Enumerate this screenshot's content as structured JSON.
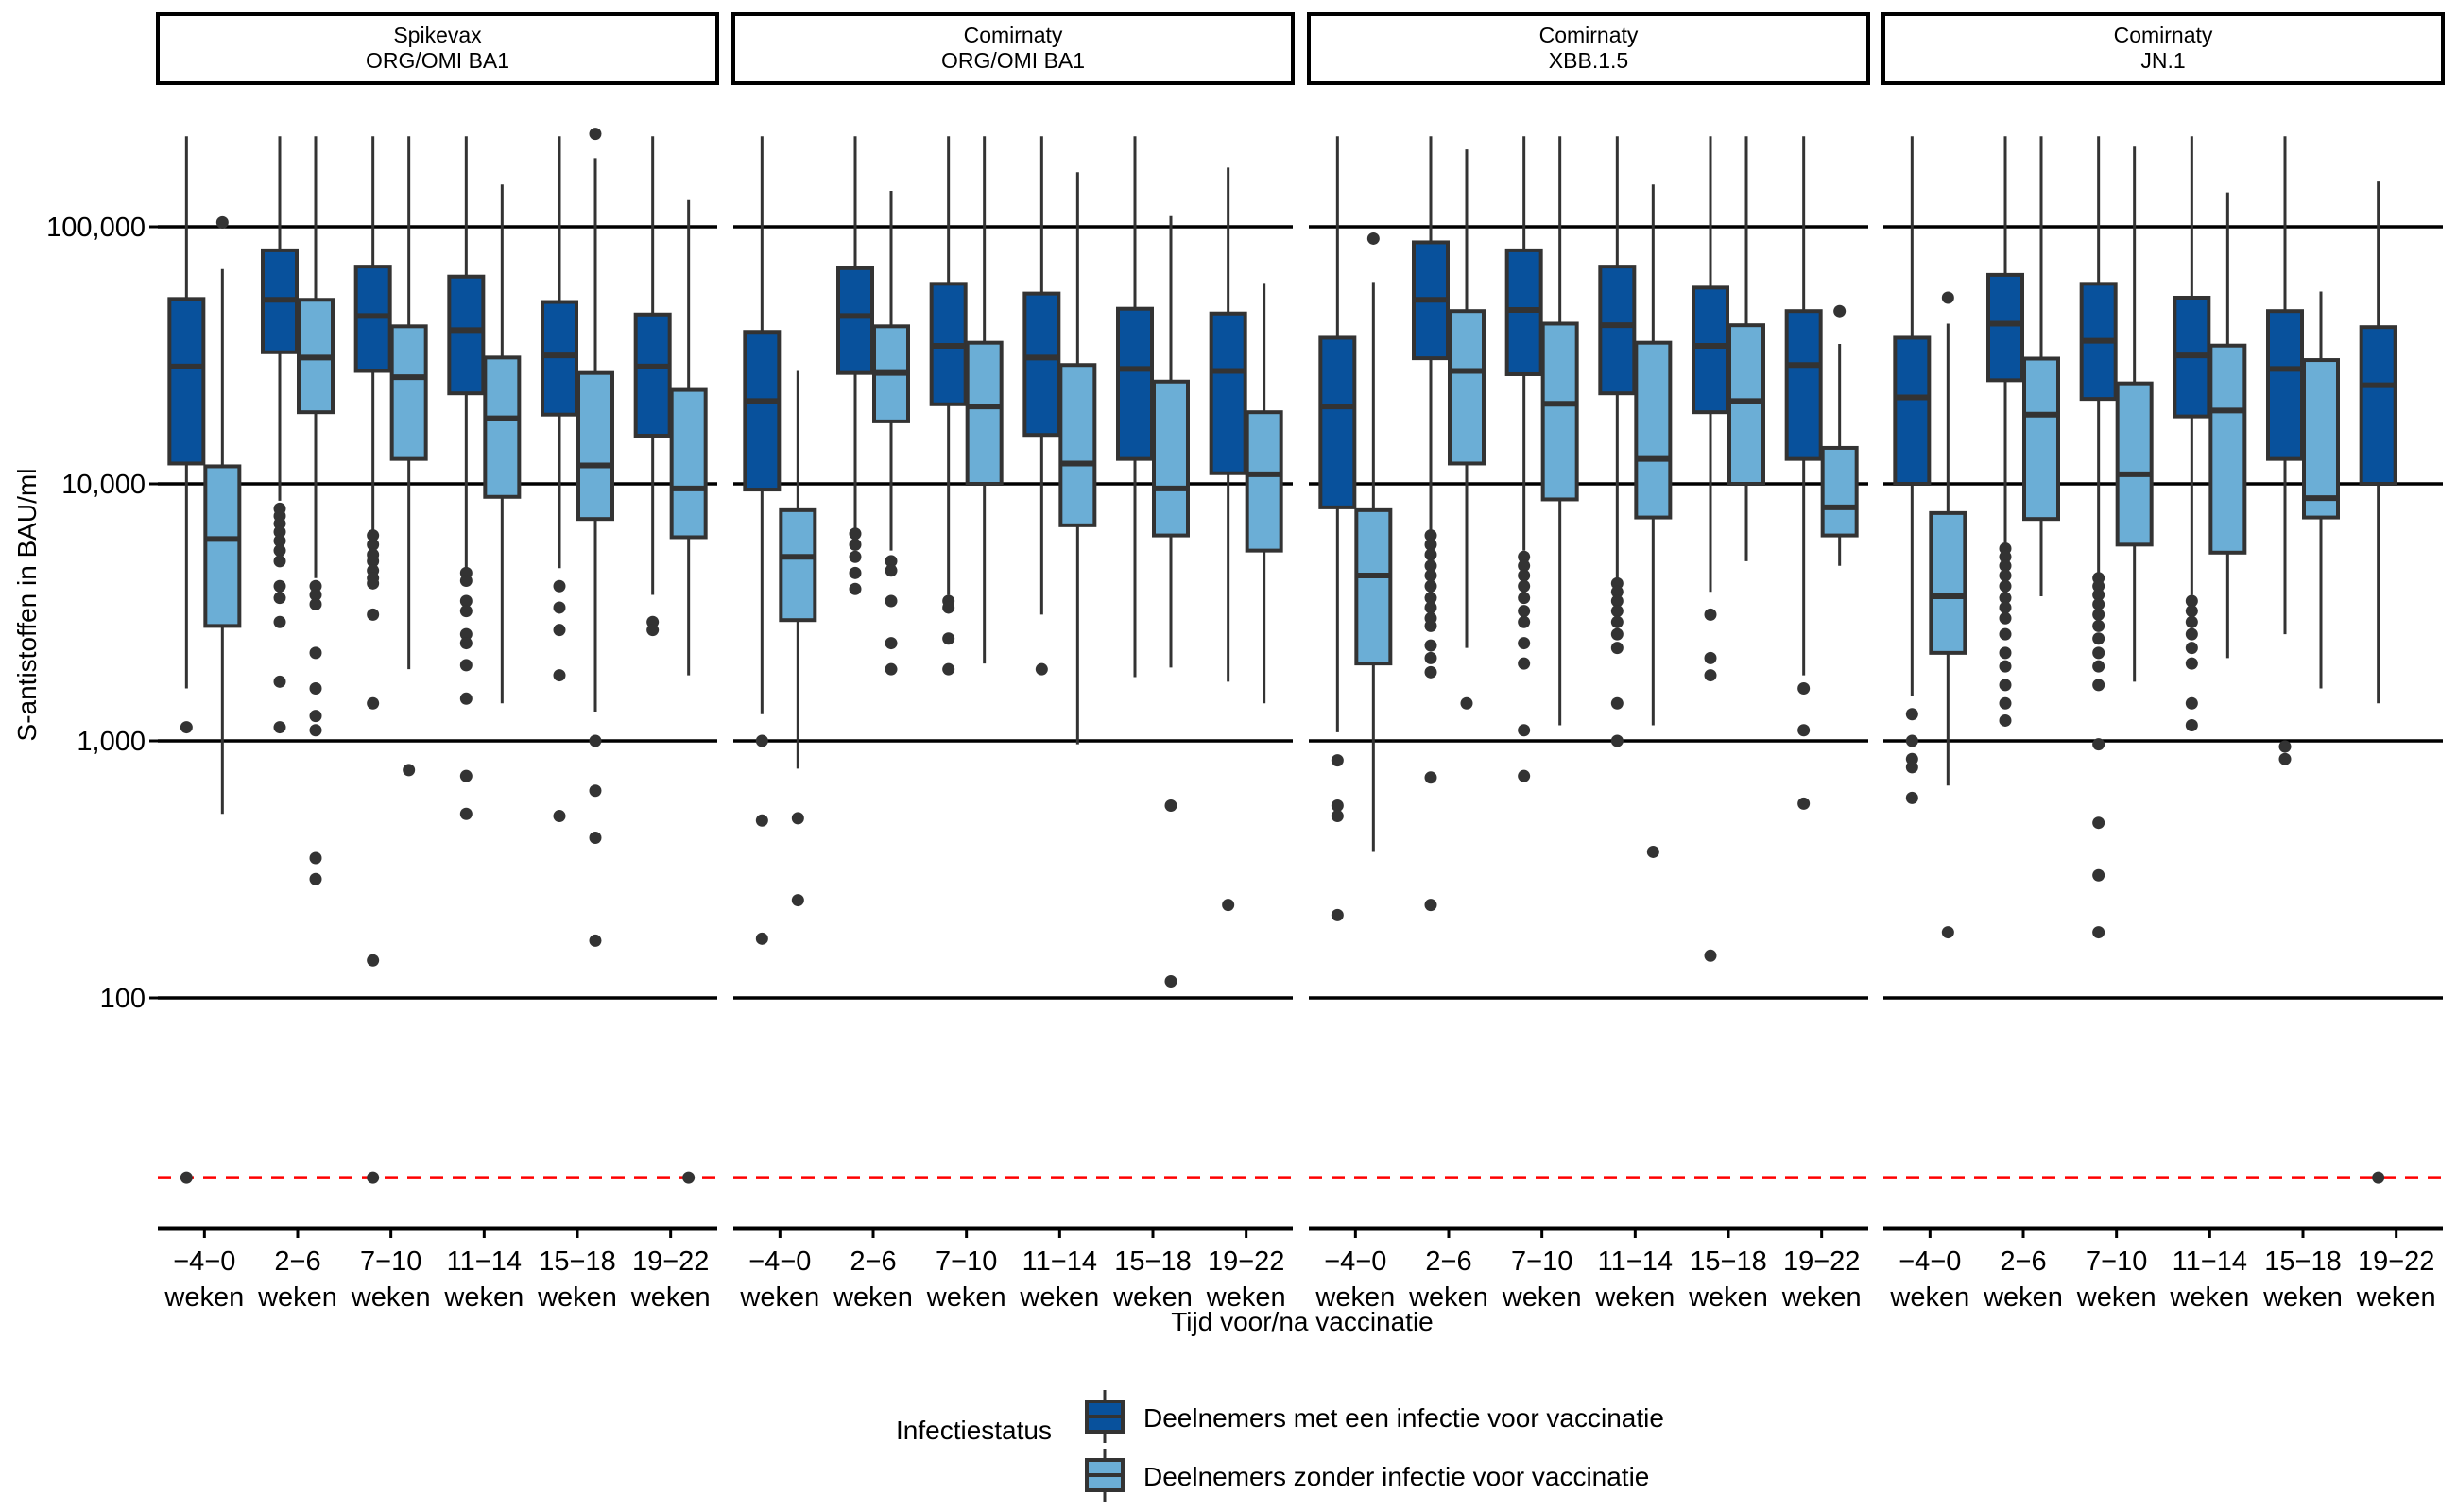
{
  "chart_data": {
    "type": "box",
    "title": "",
    "xlabel": "Tijd voor/na vaccinatie",
    "ylabel": "S-antistoffen in BAU/ml",
    "yscale": "log10",
    "ylim": [
      15,
      230000
    ],
    "yticks": [
      100,
      1000,
      10000,
      100000
    ],
    "ytick_labels": [
      "100",
      "1,000",
      "10,000",
      "100,000"
    ],
    "grid": "major-y",
    "reference_line": {
      "value": 20,
      "color": "#ff0000",
      "style": "dashed",
      "description": "detectiegrens"
    },
    "categories": [
      "−4−0\nweken",
      "2−6\nweken",
      "7−10\nweken",
      "11−14\nweken",
      "15−18\nweken",
      "19−22\nweken"
    ],
    "legend": {
      "title": "Infectiestatus",
      "position": "bottom",
      "entries": [
        {
          "name": "Deelnemers met een infectie voor vaccinatie",
          "color": "#08519c"
        },
        {
          "name": "Deelnemers zonder infectie voor vaccinatie",
          "color": "#6baed6"
        }
      ]
    },
    "panels": [
      {
        "strip": [
          "Spikevax",
          "ORG/OMI BA1"
        ],
        "series": [
          {
            "name": "Deelnemers met een infectie voor vaccinatie",
            "boxes": [
              {
                "low": 1600,
                "q1": 12000,
                "median": 28600,
                "q3": 52400,
                "high": 225000,
                "outliers": [
                  1130,
                  20
                ]
              },
              {
                "low": 8600,
                "q1": 32500,
                "median": 52000,
                "q3": 81000,
                "high": 225000,
                "outliers": [
                  8000,
                  7500,
                  7000,
                  6500,
                  6000,
                  5500,
                  5000,
                  4000,
                  3600,
                  2900,
                  1700,
                  1130
                ]
              },
              {
                "low": 6500,
                "q1": 27500,
                "median": 45000,
                "q3": 70000,
                "high": 225000,
                "outliers": [
                  6300,
                  5800,
                  5300,
                  5000,
                  4600,
                  4300,
                  4100,
                  3100,
                  1400,
                  140,
                  20
                ]
              },
              {
                "low": 4600,
                "q1": 22500,
                "median": 39600,
                "q3": 64000,
                "high": 225000,
                "outliers": [
                  4500,
                  4200,
                  3500,
                  3200,
                  2600,
                  2400,
                  1970,
                  1460,
                  730,
                  520
                ]
              },
              {
                "low": 4700,
                "q1": 18600,
                "median": 31600,
                "q3": 51000,
                "high": 225000,
                "outliers": [
                  4000,
                  3300,
                  2700,
                  1800,
                  510
                ]
              },
              {
                "low": 3700,
                "q1": 15400,
                "median": 28600,
                "q3": 45600,
                "high": 225000,
                "outliers": [
                  2900,
                  2700
                ]
              }
            ]
          },
          {
            "name": "Deelnemers zonder infectie voor vaccinatie",
            "boxes": [
              {
                "low": 520,
                "q1": 2800,
                "median": 6100,
                "q3": 11700,
                "high": 68500,
                "outliers": [
                  104000
                ]
              },
              {
                "low": 4300,
                "q1": 19000,
                "median": 31000,
                "q3": 52000,
                "high": 225000,
                "outliers": [
                  4000,
                  3700,
                  3400,
                  2200,
                  1600,
                  1250,
                  1100,
                  350,
                  290
                ]
              },
              {
                "low": 1900,
                "q1": 12500,
                "median": 26000,
                "q3": 41000,
                "high": 225000,
                "outliers": [
                  770
                ]
              },
              {
                "low": 1400,
                "q1": 8900,
                "median": 18000,
                "q3": 31000,
                "high": 146000,
                "outliers": []
              },
              {
                "low": 1300,
                "q1": 7300,
                "median": 11800,
                "q3": 27000,
                "high": 185000,
                "outliers": [
                  230000,
                  1000,
                  640,
                  420,
                  167
                ]
              },
              {
                "low": 1800,
                "q1": 6200,
                "median": 9600,
                "q3": 23200,
                "high": 127000,
                "outliers": [
                  20
                ]
              }
            ]
          }
        ]
      },
      {
        "strip": [
          "Comirnaty",
          "ORG/OMI BA1"
        ],
        "series": [
          {
            "name": "Deelnemers met een infectie voor vaccinatie",
            "boxes": [
              {
                "low": 1270,
                "q1": 9500,
                "median": 21000,
                "q3": 39000,
                "high": 225000,
                "outliers": [
                  1000,
                  490,
                  170
                ]
              },
              {
                "low": 6500,
                "q1": 27000,
                "median": 45000,
                "q3": 69000,
                "high": 225000,
                "outliers": [
                  6400,
                  5800,
                  5200,
                  4500,
                  3900
                ]
              },
              {
                "low": 3700,
                "q1": 20400,
                "median": 34400,
                "q3": 60000,
                "high": 225000,
                "outliers": [
                  3500,
                  3300,
                  2500,
                  1900
                ]
              },
              {
                "low": 3100,
                "q1": 15500,
                "median": 31000,
                "q3": 55000,
                "high": 225000,
                "outliers": [
                  1900
                ]
              },
              {
                "low": 1770,
                "q1": 12500,
                "median": 28000,
                "q3": 48000,
                "high": 225000,
                "outliers": []
              },
              {
                "low": 1700,
                "q1": 11000,
                "median": 27500,
                "q3": 46000,
                "high": 170000,
                "outliers": [
                  230
                ]
              }
            ]
          },
          {
            "name": "Deelnemers zonder infectie voor vaccinatie",
            "boxes": [
              {
                "low": 780,
                "q1": 2950,
                "median": 5200,
                "q3": 7900,
                "high": 27500,
                "outliers": [
                  500,
                  240
                ]
              },
              {
                "low": 5500,
                "q1": 17500,
                "median": 27000,
                "q3": 41000,
                "high": 138000,
                "outliers": [
                  5000,
                  4600,
                  3500,
                  2400,
                  1900
                ]
              },
              {
                "low": 2000,
                "q1": 10000,
                "median": 20000,
                "q3": 35400,
                "high": 225000,
                "outliers": []
              },
              {
                "low": 970,
                "q1": 6900,
                "median": 12000,
                "q3": 29000,
                "high": 163000,
                "outliers": []
              },
              {
                "low": 1930,
                "q1": 6300,
                "median": 9600,
                "q3": 25000,
                "high": 110000,
                "outliers": [
                  560,
                  116
                ]
              },
              {
                "low": 1400,
                "q1": 5500,
                "median": 10900,
                "q3": 19000,
                "high": 60000,
                "outliers": []
              }
            ]
          }
        ]
      },
      {
        "strip": [
          "Comirnaty",
          "XBB.1.5"
        ],
        "series": [
          {
            "name": "Deelnemers met een infectie voor vaccinatie",
            "boxes": [
              {
                "low": 1080,
                "q1": 8100,
                "median": 20000,
                "q3": 37000,
                "high": 225000,
                "outliers": [
                  840,
                  560,
                  510,
                  210
                ]
              },
              {
                "low": 6600,
                "q1": 30800,
                "median": 52000,
                "q3": 87000,
                "high": 225000,
                "outliers": [
                  6300,
                  5800,
                  5300,
                  4800,
                  4400,
                  4000,
                  3600,
                  3300,
                  3000,
                  2800,
                  2350,
                  2100,
                  1850,
                  720,
                  230
                ]
              },
              {
                "low": 5500,
                "q1": 26700,
                "median": 47500,
                "q3": 81000,
                "high": 225000,
                "outliers": [
                  5200,
                  4800,
                  4400,
                  4000,
                  3600,
                  3200,
                  2900,
                  2400,
                  2000,
                  1100,
                  730
                ]
              },
              {
                "low": 4300,
                "q1": 22500,
                "median": 41400,
                "q3": 70000,
                "high": 225000,
                "outliers": [
                  4100,
                  3800,
                  3500,
                  3200,
                  2900,
                  2600,
                  2300,
                  1400,
                  1000
                ]
              },
              {
                "low": 3800,
                "q1": 19000,
                "median": 34400,
                "q3": 58000,
                "high": 225000,
                "outliers": [
                  3100,
                  2100,
                  1800,
                  146
                ]
              },
              {
                "low": 1800,
                "q1": 12500,
                "median": 29000,
                "q3": 47000,
                "high": 225000,
                "outliers": [
                  1600,
                  1100,
                  570
                ]
              }
            ]
          },
          {
            "name": "Deelnemers zonder infectie voor vaccinatie",
            "boxes": [
              {
                "low": 370,
                "q1": 2000,
                "median": 4400,
                "q3": 7900,
                "high": 61000,
                "outliers": [
                  90000
                ]
              },
              {
                "low": 2300,
                "q1": 12000,
                "median": 27500,
                "q3": 47000,
                "high": 200000,
                "outliers": [
                  1400
                ]
              },
              {
                "low": 1150,
                "q1": 8700,
                "median": 20500,
                "q3": 42000,
                "high": 225000,
                "outliers": []
              },
              {
                "low": 1150,
                "q1": 7400,
                "median": 12500,
                "q3": 35400,
                "high": 146000,
                "outliers": [
                  370
                ]
              },
              {
                "low": 5000,
                "q1": 10000,
                "median": 21000,
                "q3": 41400,
                "high": 225000,
                "outliers": []
              },
              {
                "low": 4800,
                "q1": 6300,
                "median": 8100,
                "q3": 13800,
                "high": 35000,
                "outliers": [
                  47000
                ]
              }
            ]
          }
        ]
      },
      {
        "strip": [
          "Comirnaty",
          "JN.1"
        ],
        "series": [
          {
            "name": "Deelnemers met een infectie voor vaccinatie",
            "boxes": [
              {
                "low": 1500,
                "q1": 10000,
                "median": 21700,
                "q3": 37000,
                "high": 225000,
                "outliers": [
                  1270,
                  1000,
                  850,
                  790,
                  600
                ]
              },
              {
                "low": 5900,
                "q1": 25300,
                "median": 42000,
                "q3": 65000,
                "high": 225000,
                "outliers": [
                  5600,
                  5200,
                  4800,
                  4400,
                  4000,
                  3600,
                  3300,
                  3000,
                  2600,
                  2200,
                  1950,
                  1650,
                  1400,
                  1200
                ]
              },
              {
                "low": 4500,
                "q1": 21400,
                "median": 36000,
                "q3": 60000,
                "high": 225000,
                "outliers": [
                  4300,
                  4000,
                  3700,
                  3400,
                  3100,
                  2800,
                  2500,
                  2200,
                  1950,
                  1650,
                  970,
                  480,
                  300,
                  180
                ]
              },
              {
                "low": 3700,
                "q1": 18300,
                "median": 31600,
                "q3": 53000,
                "high": 225000,
                "outliers": [
                  3500,
                  3200,
                  2900,
                  2600,
                  2300,
                  2000,
                  1400,
                  1150
                ]
              },
              {
                "low": 2600,
                "q1": 12500,
                "median": 28000,
                "q3": 47000,
                "high": 225000,
                "outliers": [
                  950,
                  850
                ]
              },
              {
                "low": 1400,
                "q1": 10000,
                "median": 24200,
                "q3": 40700,
                "high": 150000,
                "outliers": [
                  20
                ]
              }
            ]
          },
          {
            "name": "Deelnemers zonder infectie voor vaccinatie",
            "boxes": [
              {
                "low": 670,
                "q1": 2200,
                "median": 3650,
                "q3": 7700,
                "high": 42000,
                "outliers": [
                  53000,
                  180
                ]
              },
              {
                "low": 3650,
                "q1": 7300,
                "median": 18600,
                "q3": 30700,
                "high": 225000,
                "outliers": []
              },
              {
                "low": 1700,
                "q1": 5800,
                "median": 10900,
                "q3": 24600,
                "high": 205000,
                "outliers": []
              },
              {
                "low": 2100,
                "q1": 5400,
                "median": 19300,
                "q3": 34500,
                "high": 136000,
                "outliers": []
              },
              {
                "low": 1600,
                "q1": 7400,
                "median": 8800,
                "q3": 30300,
                "high": 56000,
                "outliers": []
              },
              null
            ]
          }
        ]
      }
    ]
  }
}
